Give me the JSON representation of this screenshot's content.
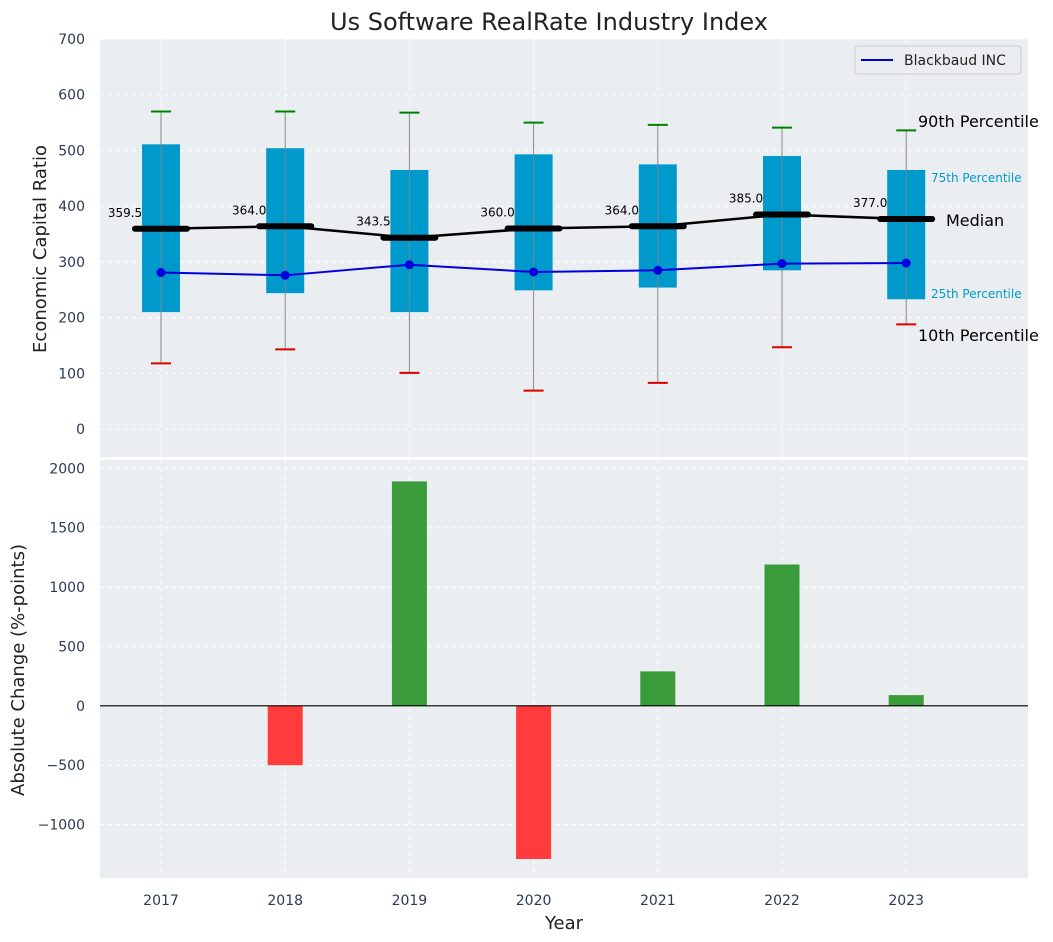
{
  "chart_data": [
    {
      "type": "box",
      "title": "Us Software RealRate Industry Index",
      "ylabel": "Economic Capital Ratio",
      "ylim": [
        -50,
        700
      ],
      "yticks": [
        0,
        100,
        200,
        300,
        400,
        500,
        600,
        700
      ],
      "categories": [
        "2017",
        "2018",
        "2019",
        "2020",
        "2021",
        "2022",
        "2023"
      ],
      "p10": [
        118,
        143,
        101,
        69,
        83,
        147,
        188
      ],
      "p25": [
        210,
        244,
        210,
        249,
        254,
        285,
        233
      ],
      "median": [
        359.5,
        364.0,
        343.5,
        360.0,
        364.0,
        385.0,
        377.0
      ],
      "median_labels": [
        "359.5",
        "364.0",
        "343.5",
        "360.0",
        "364.0",
        "385.0",
        "377.0"
      ],
      "p75": [
        511,
        504,
        465,
        493,
        475,
        490,
        465
      ],
      "p90": [
        570,
        570,
        568,
        550,
        546,
        541,
        536
      ],
      "series": [
        {
          "name": "Blackbaud INC",
          "values": [
            281,
            276,
            295,
            282,
            285,
            297,
            298
          ],
          "color": "#0000dd"
        }
      ],
      "annotations": {
        "p90": "90th Percentile",
        "p75": "75th Percentile",
        "median": "Median",
        "p25": "25th Percentile",
        "p10": "10th Percentile"
      },
      "legend": "top-right"
    },
    {
      "type": "bar",
      "ylabel": "Absolute Change (%-points)",
      "xlabel": "Year",
      "ylim": [
        -1450,
        2070
      ],
      "yticks": [
        -1000,
        -500,
        0,
        500,
        1000,
        1500,
        2000
      ],
      "ytick_labels": [
        "−1000",
        "−500",
        "0",
        "500",
        "1000",
        "1500",
        "2000"
      ],
      "categories": [
        "2017",
        "2018",
        "2019",
        "2020",
        "2021",
        "2022",
        "2023"
      ],
      "values": [
        0,
        -500,
        1890,
        -1290,
        290,
        1190,
        90
      ]
    }
  ],
  "colors": {
    "plot_bg": "#eaeef0",
    "box": "#0099cc",
    "whisker": "#888888",
    "p90_cap": "#008000",
    "p10_cap": "#dd0000",
    "median": "#000000",
    "company": "#0000dd",
    "positive": "#3a9b3a",
    "negative": "#ff3b3b"
  }
}
